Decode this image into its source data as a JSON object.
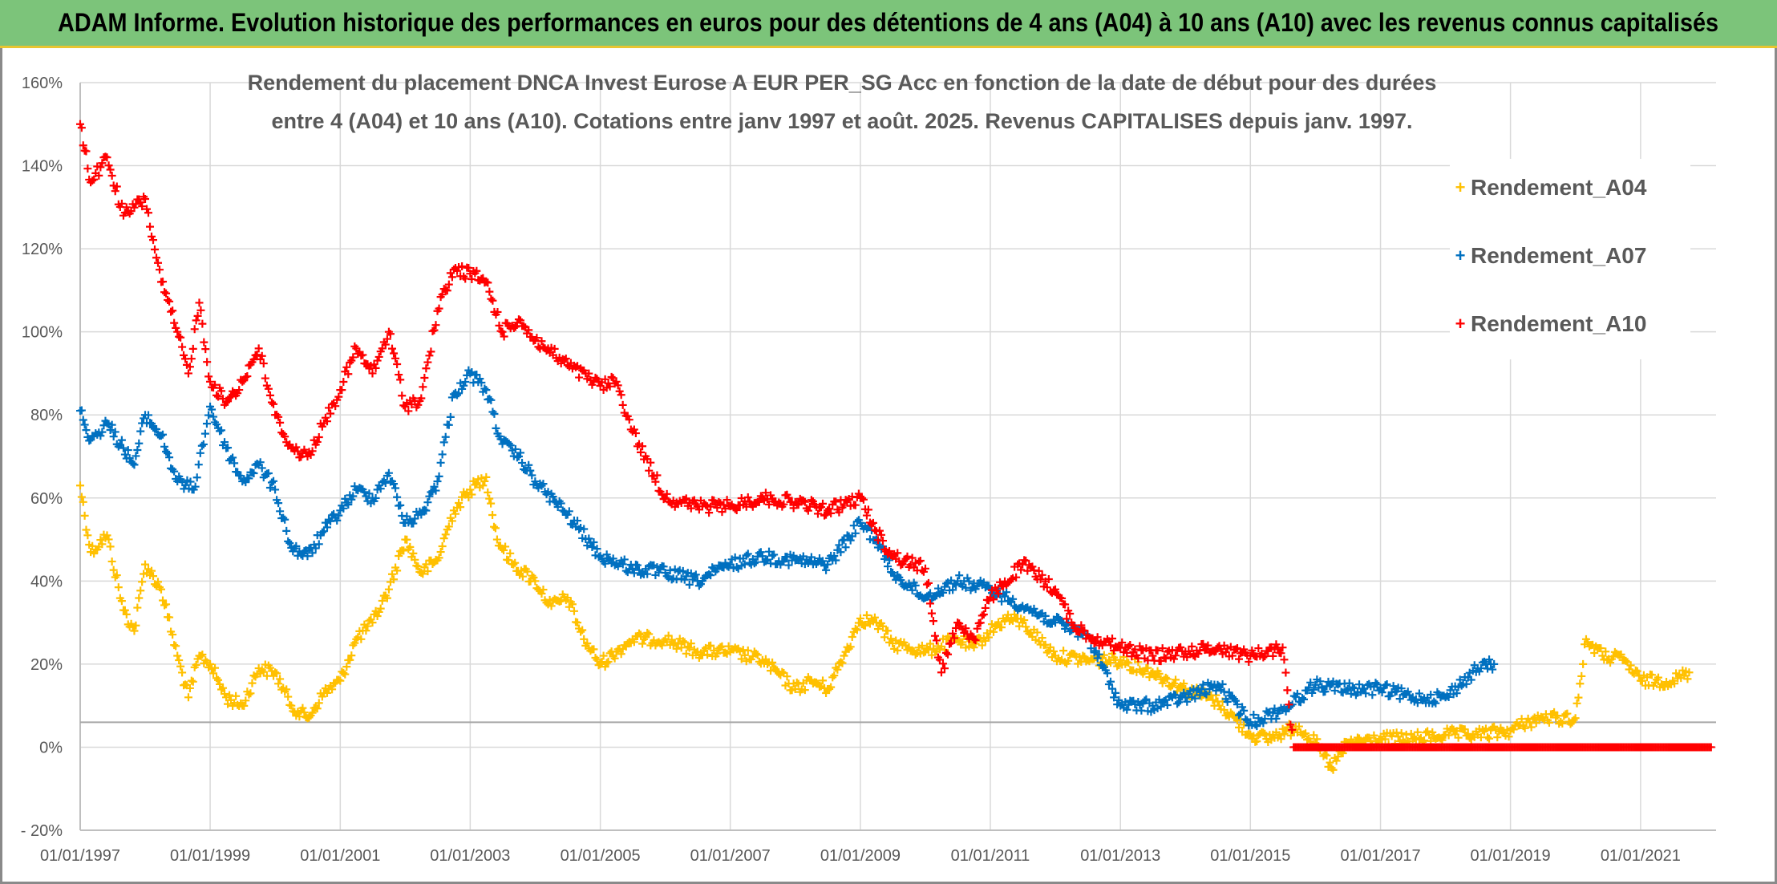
{
  "header": {
    "title": "ADAM Informe. Evolution historique des performances en euros pour des détentions de 4 ans (A04) à 10 ans (A10) avec les revenus connus capitalisés"
  },
  "colors": {
    "header_bg": "#7cc47a",
    "A04": "#ffc000",
    "A07": "#0070c0",
    "A10": "#ff0000"
  },
  "chart_data": {
    "type": "scatter",
    "title_line1": "Rendement du placement DNCA Invest Eurose A EUR PER_SG Acc en fonction de la date de début pour des durées",
    "title_line2": "entre 4 (A04) et 10 ans (A10). Cotations entre janv 1997 et août. 2025. Revenus CAPITALISES depuis janv. 1997.",
    "xlabel": "",
    "ylabel": "",
    "x_type": "date",
    "xlim": [
      "1997-01-01",
      "2022-03-01"
    ],
    "ylim": [
      -0.2,
      1.6
    ],
    "y_ticks": [
      -0.2,
      0,
      0.2,
      0.4,
      0.6,
      0.8,
      1.0,
      1.2,
      1.4,
      1.6
    ],
    "y_tick_labels": [
      "- 20%",
      "0%",
      "20%",
      "40%",
      "60%",
      "80%",
      "100%",
      "120%",
      "140%",
      "160%"
    ],
    "x_ticks": [
      "1997-01-01",
      "1999-01-01",
      "2001-01-01",
      "2003-01-01",
      "2005-01-01",
      "2007-01-01",
      "2009-01-01",
      "2011-01-01",
      "2013-01-01",
      "2015-01-01",
      "2017-01-01",
      "2019-01-01",
      "2021-01-01"
    ],
    "x_tick_labels": [
      "01/01/1997",
      "01/01/1999",
      "01/01/2001",
      "01/01/2003",
      "01/01/2005",
      "01/01/2007",
      "01/01/2009",
      "01/01/2011",
      "01/01/2013",
      "01/01/2015",
      "01/01/2017",
      "01/01/2019",
      "01/01/2021"
    ],
    "reference_line_y": 0.06,
    "grid": true,
    "legend_position": "top-right",
    "series": [
      {
        "name": "Rendement_A04",
        "color": "#ffc000",
        "points": [
          [
            "1997-01-01",
            0.63
          ],
          [
            "1997-03-01",
            0.47
          ],
          [
            "1997-06-01",
            0.51
          ],
          [
            "1997-09-01",
            0.33
          ],
          [
            "1997-11-01",
            0.28
          ],
          [
            "1998-01-01",
            0.44
          ],
          [
            "1998-04-01",
            0.38
          ],
          [
            "1998-07-01",
            0.22
          ],
          [
            "1998-09-01",
            0.12
          ],
          [
            "1998-11-01",
            0.22
          ],
          [
            "1999-01-01",
            0.2
          ],
          [
            "1999-04-01",
            0.12
          ],
          [
            "1999-07-01",
            0.1
          ],
          [
            "1999-10-01",
            0.19
          ],
          [
            "2000-01-01",
            0.18
          ],
          [
            "2000-04-01",
            0.1
          ],
          [
            "2000-07-01",
            0.07
          ],
          [
            "2000-10-01",
            0.13
          ],
          [
            "2001-01-01",
            0.16
          ],
          [
            "2001-04-01",
            0.26
          ],
          [
            "2001-07-01",
            0.3
          ],
          [
            "2001-10-01",
            0.38
          ],
          [
            "2002-01-01",
            0.5
          ],
          [
            "2002-04-01",
            0.42
          ],
          [
            "2002-07-01",
            0.45
          ],
          [
            "2002-10-01",
            0.57
          ],
          [
            "2003-01-01",
            0.62
          ],
          [
            "2003-04-01",
            0.65
          ],
          [
            "2003-06-01",
            0.5
          ],
          [
            "2003-09-01",
            0.44
          ],
          [
            "2004-01-01",
            0.4
          ],
          [
            "2004-04-01",
            0.34
          ],
          [
            "2004-07-01",
            0.36
          ],
          [
            "2004-10-01",
            0.26
          ],
          [
            "2005-01-01",
            0.2
          ],
          [
            "2005-04-01",
            0.23
          ],
          [
            "2005-07-01",
            0.26
          ],
          [
            "2006-01-01",
            0.26
          ],
          [
            "2006-07-01",
            0.23
          ],
          [
            "2007-01-01",
            0.23
          ],
          [
            "2007-07-01",
            0.21
          ],
          [
            "2008-01-01",
            0.14
          ],
          [
            "2008-04-01",
            0.16
          ],
          [
            "2008-07-01",
            0.14
          ],
          [
            "2008-10-01",
            0.22
          ],
          [
            "2009-01-01",
            0.31
          ],
          [
            "2009-04-01",
            0.3
          ],
          [
            "2009-07-01",
            0.25
          ],
          [
            "2010-01-01",
            0.23
          ],
          [
            "2010-07-01",
            0.26
          ],
          [
            "2010-10-01",
            0.24
          ],
          [
            "2011-01-01",
            0.28
          ],
          [
            "2011-04-01",
            0.31
          ],
          [
            "2011-07-01",
            0.3
          ],
          [
            "2012-01-01",
            0.22
          ],
          [
            "2012-07-01",
            0.21
          ],
          [
            "2013-01-01",
            0.21
          ],
          [
            "2013-07-01",
            0.18
          ],
          [
            "2014-01-01",
            0.14
          ],
          [
            "2014-07-01",
            0.11
          ],
          [
            "2015-01-01",
            0.03
          ],
          [
            "2015-04-01",
            0.02
          ],
          [
            "2015-10-01",
            0.05
          ],
          [
            "2016-01-01",
            0.01
          ],
          [
            "2016-04-01",
            -0.05
          ],
          [
            "2016-07-01",
            0.01
          ],
          [
            "2017-01-01",
            0.02
          ],
          [
            "2017-07-01",
            0.02
          ],
          [
            "2018-01-01",
            0.03
          ],
          [
            "2018-07-01",
            0.03
          ],
          [
            "2019-01-01",
            0.04
          ],
          [
            "2019-04-01",
            0.06
          ],
          [
            "2019-07-01",
            0.07
          ],
          [
            "2020-01-01",
            0.07
          ],
          [
            "2020-03-01",
            0.26
          ],
          [
            "2020-06-01",
            0.22
          ],
          [
            "2020-10-01",
            0.21
          ],
          [
            "2021-01-01",
            0.16
          ],
          [
            "2021-07-01",
            0.16
          ],
          [
            "2021-10-01",
            0.18
          ]
        ]
      },
      {
        "name": "Rendement_A07",
        "color": "#0070c0",
        "points": [
          [
            "1997-01-01",
            0.81
          ],
          [
            "1997-03-01",
            0.74
          ],
          [
            "1997-06-01",
            0.78
          ],
          [
            "1997-09-01",
            0.72
          ],
          [
            "1997-11-01",
            0.68
          ],
          [
            "1998-01-01",
            0.8
          ],
          [
            "1998-04-01",
            0.75
          ],
          [
            "1998-07-01",
            0.64
          ],
          [
            "1998-10-01",
            0.62
          ],
          [
            "1999-01-01",
            0.82
          ],
          [
            "1999-04-01",
            0.72
          ],
          [
            "1999-07-01",
            0.64
          ],
          [
            "1999-10-01",
            0.68
          ],
          [
            "2000-01-01",
            0.62
          ],
          [
            "2000-04-01",
            0.48
          ],
          [
            "2000-07-01",
            0.46
          ],
          [
            "2000-10-01",
            0.52
          ],
          [
            "2001-01-01",
            0.57
          ],
          [
            "2001-04-01",
            0.62
          ],
          [
            "2001-07-01",
            0.6
          ],
          [
            "2001-10-01",
            0.66
          ],
          [
            "2002-01-01",
            0.54
          ],
          [
            "2002-04-01",
            0.56
          ],
          [
            "2002-07-01",
            0.64
          ],
          [
            "2002-10-01",
            0.85
          ],
          [
            "2003-01-01",
            0.9
          ],
          [
            "2003-04-01",
            0.86
          ],
          [
            "2003-07-01",
            0.73
          ],
          [
            "2003-10-01",
            0.7
          ],
          [
            "2004-01-01",
            0.64
          ],
          [
            "2004-07-01",
            0.56
          ],
          [
            "2005-01-01",
            0.46
          ],
          [
            "2005-07-01",
            0.43
          ],
          [
            "2006-01-01",
            0.42
          ],
          [
            "2006-07-01",
            0.4
          ],
          [
            "2007-01-01",
            0.44
          ],
          [
            "2007-07-01",
            0.46
          ],
          [
            "2008-01-01",
            0.45
          ],
          [
            "2008-07-01",
            0.44
          ],
          [
            "2009-01-01",
            0.54
          ],
          [
            "2009-04-01",
            0.5
          ],
          [
            "2009-07-01",
            0.42
          ],
          [
            "2010-01-01",
            0.36
          ],
          [
            "2010-07-01",
            0.4
          ],
          [
            "2011-01-01",
            0.38
          ],
          [
            "2011-07-01",
            0.34
          ],
          [
            "2012-01-01",
            0.3
          ],
          [
            "2012-07-01",
            0.27
          ],
          [
            "2013-01-01",
            0.1
          ],
          [
            "2013-07-01",
            0.1
          ],
          [
            "2014-01-01",
            0.12
          ],
          [
            "2014-07-01",
            0.15
          ],
          [
            "2015-01-01",
            0.06
          ],
          [
            "2015-07-01",
            0.09
          ],
          [
            "2016-01-01",
            0.15
          ],
          [
            "2016-07-01",
            0.14
          ],
          [
            "2017-01-01",
            0.14
          ],
          [
            "2017-07-01",
            0.12
          ],
          [
            "2018-01-01",
            0.12
          ],
          [
            "2018-07-01",
            0.19
          ],
          [
            "2018-10-01",
            0.2
          ]
        ]
      },
      {
        "name": "Rendement_A10",
        "color": "#ff0000",
        "points": [
          [
            "1997-01-01",
            1.5
          ],
          [
            "1997-03-01",
            1.36
          ],
          [
            "1997-06-01",
            1.42
          ],
          [
            "1997-09-01",
            1.28
          ],
          [
            "1998-01-01",
            1.32
          ],
          [
            "1998-04-01",
            1.12
          ],
          [
            "1998-07-01",
            1.0
          ],
          [
            "1998-09-01",
            0.9
          ],
          [
            "1998-11-01",
            1.07
          ],
          [
            "1999-01-01",
            0.88
          ],
          [
            "1999-04-01",
            0.83
          ],
          [
            "1999-07-01",
            0.88
          ],
          [
            "1999-10-01",
            0.96
          ],
          [
            "2000-01-01",
            0.8
          ],
          [
            "2000-04-01",
            0.72
          ],
          [
            "2000-07-01",
            0.7
          ],
          [
            "2000-10-01",
            0.78
          ],
          [
            "2001-01-01",
            0.86
          ],
          [
            "2001-04-01",
            0.96
          ],
          [
            "2001-07-01",
            0.9
          ],
          [
            "2001-10-01",
            1.0
          ],
          [
            "2002-01-01",
            0.82
          ],
          [
            "2002-04-01",
            0.84
          ],
          [
            "2002-07-01",
            1.05
          ],
          [
            "2002-10-01",
            1.15
          ],
          [
            "2003-01-01",
            1.14
          ],
          [
            "2003-04-01",
            1.12
          ],
          [
            "2003-07-01",
            1.0
          ],
          [
            "2003-10-01",
            1.03
          ],
          [
            "2004-01-01",
            0.98
          ],
          [
            "2004-07-01",
            0.92
          ],
          [
            "2005-01-01",
            0.87
          ],
          [
            "2005-04-01",
            0.88
          ],
          [
            "2005-07-01",
            0.76
          ],
          [
            "2006-01-01",
            0.6
          ],
          [
            "2006-07-01",
            0.58
          ],
          [
            "2007-01-01",
            0.58
          ],
          [
            "2007-07-01",
            0.6
          ],
          [
            "2008-01-01",
            0.59
          ],
          [
            "2008-07-01",
            0.57
          ],
          [
            "2009-01-01",
            0.6
          ],
          [
            "2009-04-01",
            0.52
          ],
          [
            "2009-07-01",
            0.46
          ],
          [
            "2010-01-01",
            0.43
          ],
          [
            "2010-04-01",
            0.18
          ],
          [
            "2010-07-01",
            0.3
          ],
          [
            "2010-10-01",
            0.26
          ],
          [
            "2011-01-01",
            0.36
          ],
          [
            "2011-07-01",
            0.44
          ],
          [
            "2012-01-01",
            0.38
          ],
          [
            "2012-04-01",
            0.3
          ],
          [
            "2012-07-01",
            0.27
          ],
          [
            "2013-01-01",
            0.24
          ],
          [
            "2013-07-01",
            0.22
          ],
          [
            "2014-01-01",
            0.23
          ],
          [
            "2014-07-01",
            0.24
          ],
          [
            "2015-01-01",
            0.22
          ],
          [
            "2015-07-01",
            0.24
          ],
          [
            "2015-09-01",
            0.0
          ],
          [
            "2016-07-01",
            0.0
          ],
          [
            "2017-07-01",
            0.0
          ],
          [
            "2018-07-01",
            0.0
          ],
          [
            "2019-07-01",
            0.0
          ],
          [
            "2020-07-01",
            0.0
          ],
          [
            "2021-07-01",
            0.0
          ],
          [
            "2022-02-01",
            0.0
          ]
        ]
      }
    ]
  }
}
